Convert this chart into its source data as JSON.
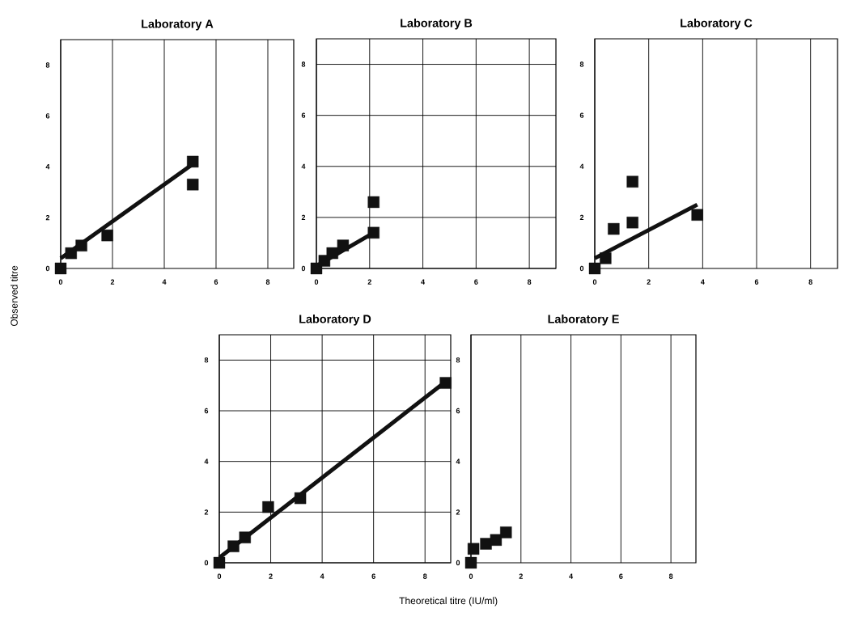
{
  "chart_data": [
    {
      "type": "scatter",
      "title": "Laboratory  A",
      "ylabel": "Observed titre",
      "grid": "x",
      "xlim": [
        0,
        9
      ],
      "ylim": [
        0,
        9
      ],
      "xticks": [
        0,
        2,
        4,
        6,
        8
      ],
      "yticks": [
        0,
        2,
        4,
        6,
        8
      ],
      "series": [
        {
          "type": "scatter",
          "color": "#111111",
          "marker": "square",
          "x": [
            0,
            0.4,
            0.8,
            1.8,
            5.1,
            5.1
          ],
          "values": [
            0,
            0.6,
            0.9,
            1.3,
            4.2,
            3.3
          ]
        },
        {
          "type": "line",
          "color": "#111111",
          "line_style": "solid",
          "x": [
            0,
            5.1
          ],
          "values": [
            0.4,
            4.1
          ]
        }
      ]
    },
    {
      "type": "scatter",
      "title": "Laboratory  B",
      "grid": true,
      "xlim": [
        0,
        9
      ],
      "ylim": [
        0,
        9
      ],
      "xticks": [
        0,
        2,
        4,
        6,
        8
      ],
      "yticks": [
        0,
        2,
        4,
        6,
        8
      ],
      "series": [
        {
          "type": "scatter",
          "color": "#111111",
          "marker": "square",
          "x": [
            0,
            0.3,
            0.6,
            1.0,
            2.15,
            2.15
          ],
          "values": [
            0,
            0.3,
            0.6,
            0.9,
            1.4,
            2.6
          ]
        },
        {
          "type": "line",
          "color": "#111111",
          "line_style": "solid",
          "x": [
            0,
            2.15
          ],
          "values": [
            0.1,
            1.4
          ]
        }
      ]
    },
    {
      "type": "scatter",
      "title": "Laboratory  C",
      "grid": "x",
      "xlim": [
        0,
        9
      ],
      "ylim": [
        0,
        9
      ],
      "xticks": [
        0,
        2,
        4,
        6,
        8
      ],
      "yticks": [
        0,
        2,
        4,
        6,
        8
      ],
      "series": [
        {
          "type": "scatter",
          "color": "#111111",
          "marker": "square",
          "x": [
            0,
            0.4,
            0.7,
            1.4,
            1.4,
            3.8
          ],
          "values": [
            0,
            0.4,
            1.55,
            1.8,
            3.4,
            2.1
          ]
        },
        {
          "type": "line",
          "color": "#111111",
          "line_style": "solid",
          "x": [
            0,
            3.8
          ],
          "values": [
            0.4,
            2.5
          ]
        }
      ]
    },
    {
      "type": "scatter",
      "title": "Laboratory  D",
      "xlabel": "Theoretical titre (IU/ml)",
      "grid": true,
      "xlim": [
        0,
        9
      ],
      "ylim": [
        0,
        9
      ],
      "xticks": [
        0,
        2,
        4,
        6,
        8
      ],
      "yticks": [
        0,
        2,
        4,
        6,
        8
      ],
      "series": [
        {
          "type": "scatter",
          "color": "#111111",
          "marker": "square",
          "x": [
            0,
            0.55,
            1.0,
            1.9,
            3.15,
            8.8
          ],
          "values": [
            0,
            0.65,
            1.0,
            2.2,
            2.55,
            7.1
          ]
        },
        {
          "type": "line",
          "color": "#111111",
          "line_style": "solid",
          "x": [
            0,
            8.8
          ],
          "values": [
            0.2,
            7.15
          ]
        }
      ]
    },
    {
      "type": "scatter",
      "title": "Laboratory E",
      "grid": "x",
      "xlim": [
        0,
        9
      ],
      "ylim": [
        0,
        9
      ],
      "xticks": [
        0,
        2,
        4,
        6,
        8
      ],
      "yticks": [
        0,
        2,
        4,
        6,
        8
      ],
      "series": [
        {
          "type": "scatter",
          "color": "#111111",
          "marker": "square",
          "x": [
            0,
            0.1,
            0.6,
            1.0,
            1.4
          ],
          "values": [
            0,
            0.55,
            0.75,
            0.9,
            1.2
          ]
        }
      ]
    }
  ]
}
